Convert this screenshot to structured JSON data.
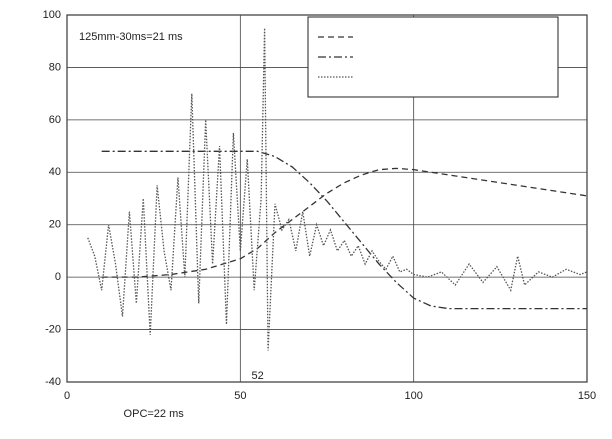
{
  "chart_data": {
    "type": "line",
    "annotations": [
      "125mm-30ms=21 ms",
      "OPC=22 ms",
      "52"
    ],
    "xlim": [
      0,
      150
    ],
    "xticks": [
      0,
      50,
      100,
      150
    ],
    "ylim": [
      -40,
      100
    ],
    "yticks": [
      -40,
      -20,
      0,
      20,
      40,
      60,
      80,
      100
    ],
    "grid": true,
    "legend": "top-right",
    "series": [
      {
        "color": "#333333",
        "dash": "dashed",
        "x": [
          10,
          20,
          30,
          40,
          50,
          55,
          60,
          65,
          70,
          75,
          80,
          85,
          90,
          95,
          100,
          105,
          110,
          120,
          130,
          140,
          150
        ],
        "values": [
          0,
          0,
          1,
          3,
          7,
          11,
          17,
          22,
          27,
          32,
          36,
          39,
          41,
          41.5,
          41,
          40,
          39,
          37,
          35,
          33,
          31
        ]
      },
      {
        "color": "#333333",
        "dash": "dash-dot",
        "x": [
          10,
          20,
          30,
          40,
          50,
          55,
          60,
          65,
          70,
          75,
          80,
          85,
          90,
          95,
          100,
          105,
          110,
          120,
          130,
          140,
          150
        ],
        "values": [
          48,
          48,
          48,
          48,
          48,
          48,
          46,
          42,
          36,
          29,
          21,
          13,
          5,
          -2,
          -8,
          -11,
          -12,
          -12,
          -12,
          -12,
          -12
        ]
      },
      {
        "color": "#555555",
        "dash": "dotted",
        "x": [
          6,
          8,
          10,
          12,
          14,
          16,
          18,
          20,
          22,
          24,
          26,
          28,
          30,
          32,
          34,
          36,
          38,
          40,
          42,
          44,
          46,
          48,
          50,
          52,
          54,
          56,
          57,
          58,
          60,
          62,
          64,
          66,
          68,
          70,
          72,
          74,
          76,
          78,
          80,
          82,
          84,
          86,
          88,
          90,
          92,
          94,
          96,
          98,
          100,
          104,
          108,
          112,
          116,
          120,
          124,
          128,
          130,
          132,
          136,
          140,
          144,
          148,
          150
        ],
        "values": [
          15,
          8,
          -5,
          20,
          5,
          -15,
          25,
          -10,
          30,
          -22,
          35,
          10,
          -5,
          38,
          0,
          70,
          -10,
          60,
          5,
          50,
          -18,
          55,
          10,
          45,
          -5,
          30,
          95,
          -28,
          28,
          18,
          22,
          10,
          25,
          8,
          20,
          12,
          18,
          10,
          14,
          8,
          12,
          5,
          10,
          6,
          3,
          8,
          2,
          3,
          1,
          0,
          2,
          -3,
          5,
          -2,
          4,
          -5,
          8,
          -3,
          2,
          0,
          3,
          1,
          2
        ]
      }
    ]
  }
}
